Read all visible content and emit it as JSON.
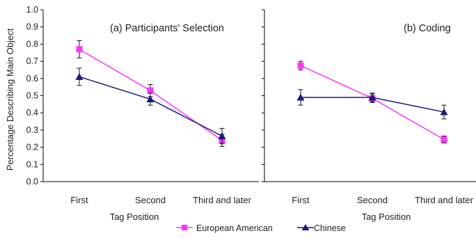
{
  "chart_data": [
    {
      "type": "line",
      "title": "(a) Participants' Selection",
      "xlabel": "Tag Position",
      "ylabel": "Percentage Describing Main Object",
      "categories": [
        "First",
        "Second",
        "Third and later"
      ],
      "ylim": [
        0,
        1
      ],
      "yticks": [
        "0.0",
        "0.1",
        "0.2",
        "0.3",
        "0.4",
        "0.5",
        "0.6",
        "0.7",
        "0.8",
        "0.9",
        "1.0"
      ],
      "series": [
        {
          "name": "European  American",
          "marker": "square",
          "color": "#ff33ff",
          "values": [
            0.77,
            0.53,
            0.24
          ],
          "error": [
            0.05,
            0.035,
            0.035
          ]
        },
        {
          "name": "Chinese",
          "marker": "triangle",
          "color": "#1a1a80",
          "values": [
            0.61,
            0.48,
            0.265
          ],
          "error": [
            0.05,
            0.035,
            0.045
          ]
        }
      ]
    },
    {
      "type": "line",
      "title": "(b) Coding",
      "xlabel": "Tag Position",
      "ylabel": "",
      "categories": [
        "First",
        "Second",
        "Third and later"
      ],
      "ylim": [
        0,
        1
      ],
      "series": [
        {
          "name": "European  American",
          "marker": "square",
          "color": "#ff33ff",
          "values": [
            0.675,
            0.485,
            0.245
          ],
          "error": [
            0.025,
            0.025,
            0.02
          ]
        },
        {
          "name": "Chinese",
          "marker": "triangle",
          "color": "#1a1a80",
          "values": [
            0.49,
            0.49,
            0.405
          ],
          "error": [
            0.045,
            0.025,
            0.04
          ]
        }
      ]
    }
  ],
  "legend": {
    "placement": "bottom-center",
    "items": [
      {
        "label": "European  American",
        "marker": "square",
        "color": "#ff33ff"
      },
      {
        "label": "Chinese",
        "marker": "triangle",
        "color": "#1a1a80"
      }
    ]
  },
  "style": {
    "axis_color": "#000000",
    "grid": false
  }
}
